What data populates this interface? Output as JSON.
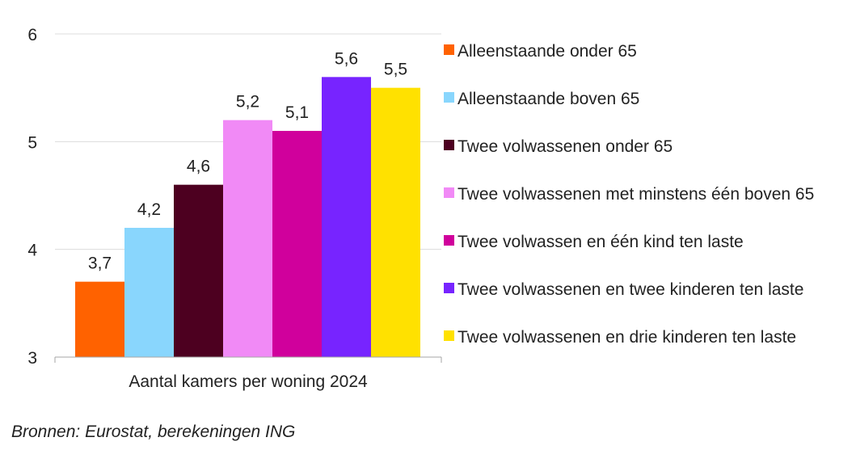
{
  "chart_data": {
    "type": "bar",
    "categories": [
      "Aantal kamers per woning 2024"
    ],
    "series": [
      {
        "name": "Alleenstaande onder 65",
        "values": [
          3.7
        ],
        "label": "3,7",
        "color": "#FF6200"
      },
      {
        "name": "Alleenstaande boven 65",
        "values": [
          4.2
        ],
        "label": "4,2",
        "color": "#89D6FD"
      },
      {
        "name": "Twee volwassenen onder 65",
        "values": [
          4.6
        ],
        "label": "4,6",
        "color": "#4D0020"
      },
      {
        "name": "Twee volwassenen met minstens één boven 65",
        "values": [
          5.2
        ],
        "label": "5,2",
        "color": "#F18AF6"
      },
      {
        "name": "Twee volwassen en één kind ten laste",
        "values": [
          5.1
        ],
        "label": "5,1",
        "color": "#D0009C"
      },
      {
        "name": "Twee volwassenen en twee kinderen ten laste",
        "values": [
          5.6
        ],
        "label": "5,6",
        "color": "#7724FF"
      },
      {
        "name": "Twee volwassenen en drie kinderen ten laste",
        "values": [
          5.5
        ],
        "label": "5,5",
        "color": "#FFE100"
      }
    ],
    "ylim": [
      3,
      6
    ],
    "yticks": [
      3,
      4,
      5,
      6
    ],
    "ytick_labels": [
      "3",
      "4",
      "5",
      "6"
    ],
    "grid": true,
    "legend_position": "right"
  },
  "source": "Bronnen: Eurostat, berekeningen ING"
}
